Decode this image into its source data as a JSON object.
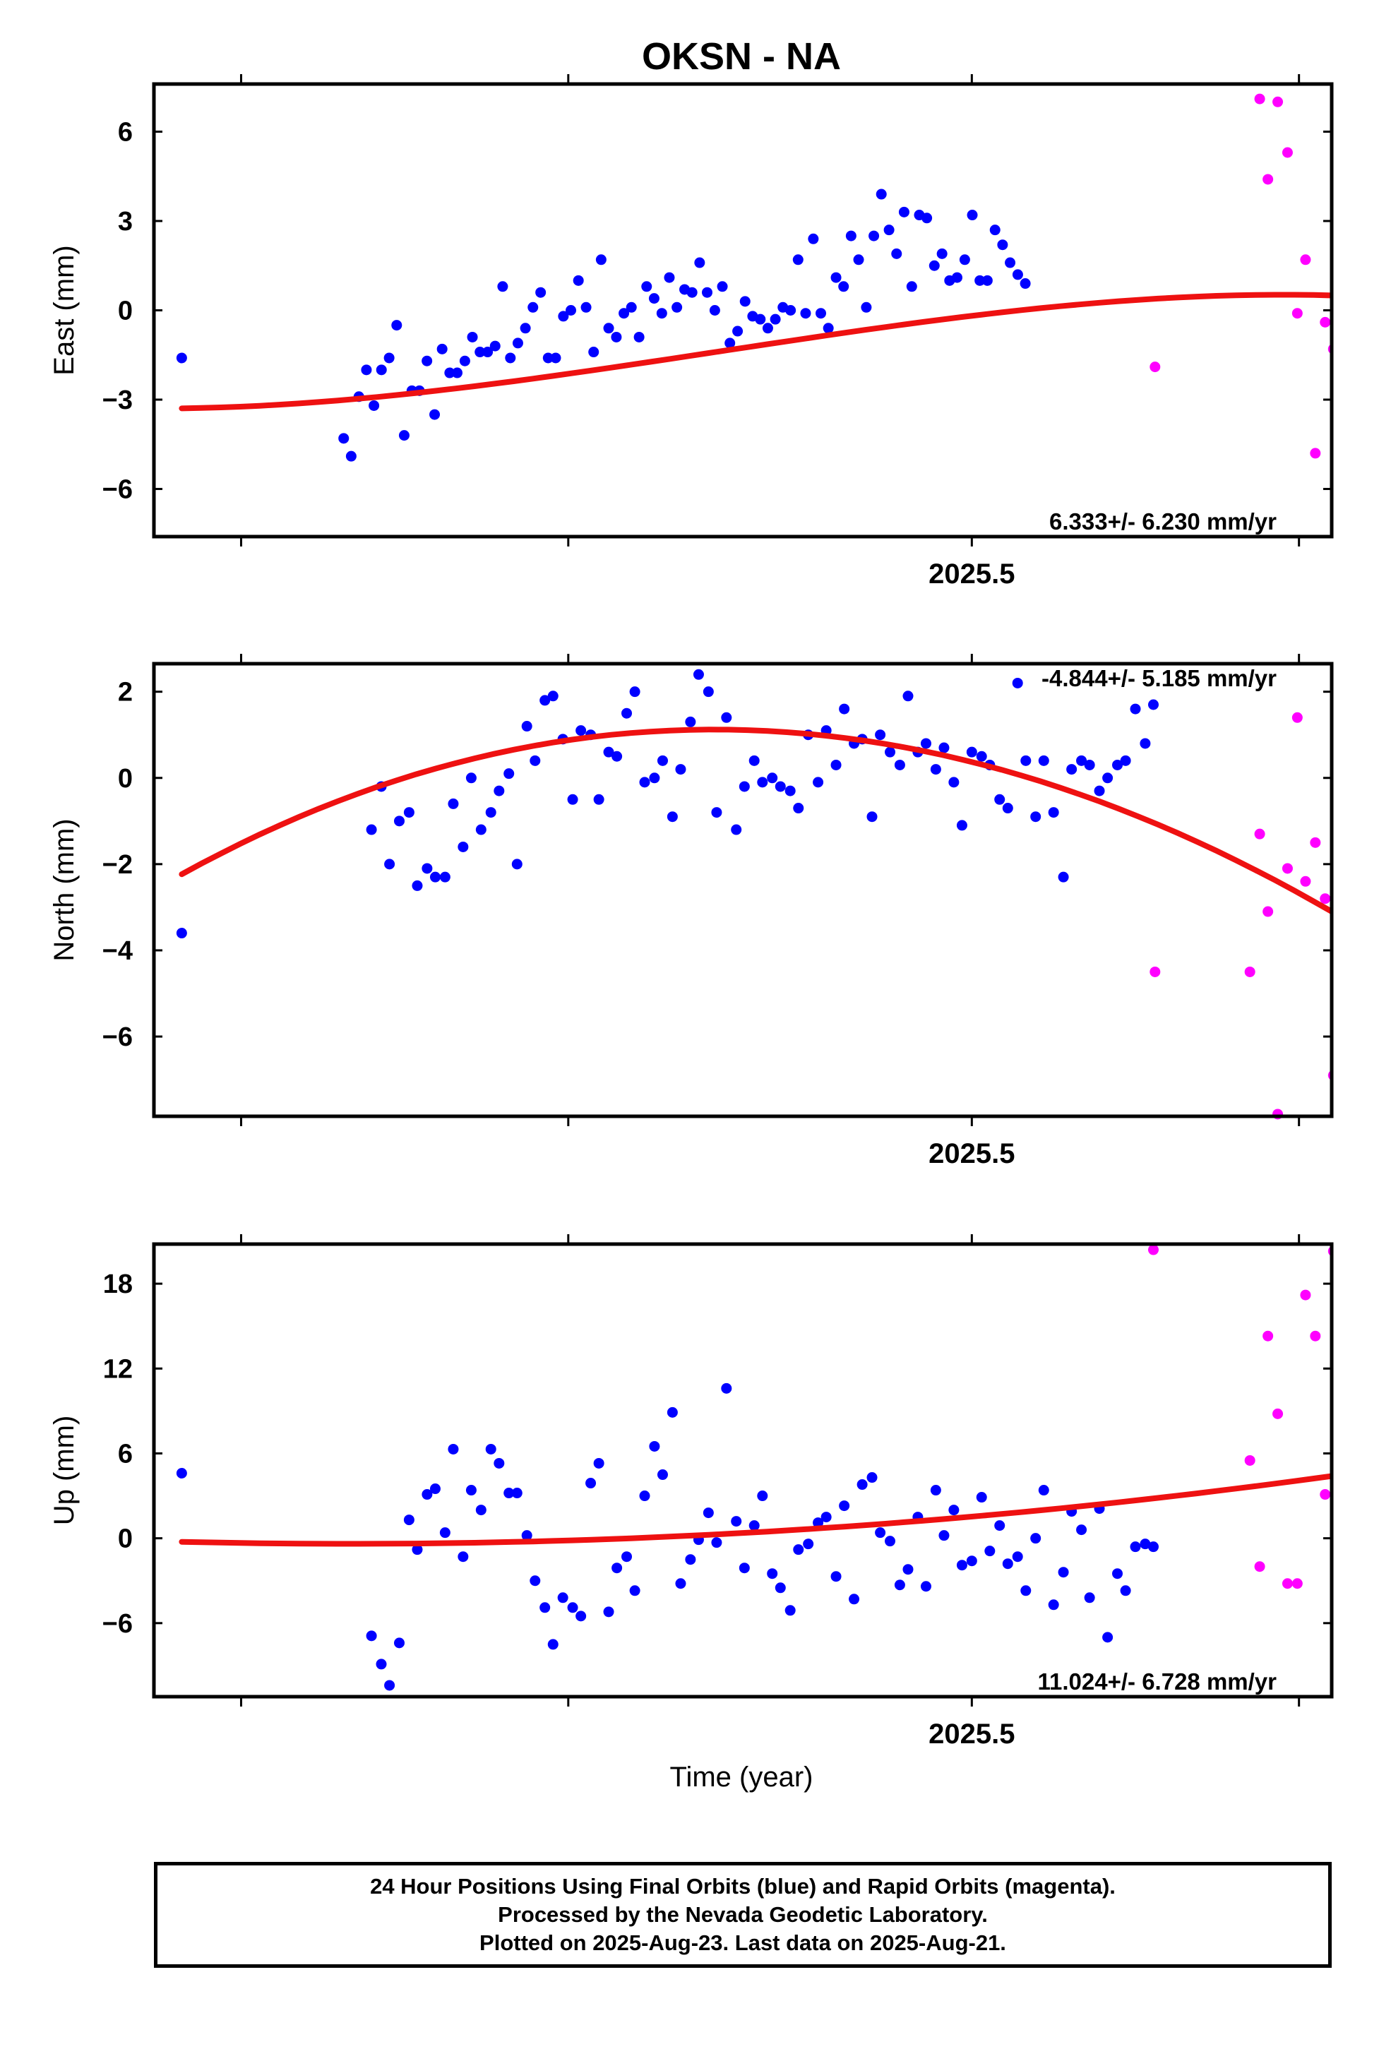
{
  "title": "OKSN - NA",
  "xlabel": "Time (year)",
  "footer": {
    "line1": "24 Hour Positions Using Final Orbits (blue) and Rapid Orbits (magenta).",
    "line2": "Processed by the Nevada Geodetic Laboratory.",
    "line3": "Plotted on 2025-Aug-23. Last data on 2025-Aug-21."
  },
  "colors": {
    "final": "#0000ff",
    "rapid": "#ff00ff",
    "fit": "#ee1111",
    "frame": "#000000"
  },
  "chart_data": [
    {
      "type": "scatter",
      "panel": "east",
      "ylabel": "East (mm)",
      "xlim": [
        2025.002,
        2025.722
      ],
      "ylim": [
        -7.6,
        7.6
      ],
      "yticks": [
        -6,
        -3,
        0,
        3,
        6
      ],
      "xticks": [
        2025.5
      ],
      "xminorticks": [
        2025.03,
        2025.23,
        2025.73
      ],
      "rate_text": "6.333+/- 6.230 mm/yr",
      "series": [
        {
          "x": [
            2025.017,
            2025.133,
            2025.139,
            2025.144,
            2025.15,
            2025.156,
            2025.161,
            2025.167,
            2025.172,
            2025.178,
            2025.183,
            2025.189,
            2025.194,
            2025.2,
            2025.206,
            2025.211,
            2025.217,
            2025.222,
            2025.228,
            2025.233,
            2025.239,
            2025.244,
            2025.25,
            2025.256,
            2025.261,
            2025.267,
            2025.272,
            2025.278,
            2025.283,
            2025.289,
            2025.294,
            2025.3,
            2025.306,
            2025.311,
            2025.317,
            2025.322,
            2025.328,
            2025.333,
            2025.339,
            2025.344,
            2025.35,
            2025.356,
            2025.361,
            2025.367,
            2025.372,
            2025.378,
            2025.383,
            2025.389,
            2025.394,
            2025.4,
            2025.406,
            2025.411,
            2025.417,
            2025.422,
            2025.428,
            2025.433,
            2025.439,
            2025.444,
            2025.45,
            2025.456,
            2025.461,
            2025.467,
            2025.472,
            2025.478,
            2025.483,
            2025.489,
            2025.494,
            2025.5,
            2025.506,
            2025.511,
            2025.517,
            2025.522,
            2025.528,
            2025.533,
            2025.539,
            2025.544,
            2025.55,
            2025.556,
            2025.561,
            2025.567,
            2025.572,
            2025.578,
            2025.583,
            2025.589,
            2025.594,
            2025.6,
            2025.606,
            2025.611,
            2025.617,
            2025.622,
            2025.628,
            2025.633,
            2025.639,
            2025.644,
            2025.65
          ],
          "y": [
            -1.6,
            -4.3,
            -4.9,
            -2.9,
            -2.0,
            -3.2,
            -2.0,
            -1.6,
            -0.5,
            -4.2,
            -2.7,
            -2.7,
            -1.7,
            -3.5,
            -1.3,
            -2.1,
            -2.1,
            -1.7,
            -0.9,
            -1.4,
            -1.4,
            -1.2,
            0.8,
            -1.6,
            -1.1,
            -0.6,
            0.1,
            0.6,
            -1.6,
            -1.6,
            -0.2,
            0.0,
            1.0,
            0.1,
            -1.4,
            1.7,
            -0.6,
            -0.9,
            -0.1,
            0.1,
            -0.9,
            0.8,
            0.4,
            -0.1,
            1.1,
            0.1,
            0.7,
            0.6,
            1.6,
            0.6,
            0.0,
            0.8,
            -1.1,
            -0.7,
            0.3,
            -0.2,
            -0.3,
            -0.6,
            -0.3,
            0.1,
            0.0,
            1.7,
            -0.1,
            2.4,
            -0.1,
            -0.6,
            1.1,
            0.8,
            2.5,
            1.7,
            0.1,
            2.5,
            3.9,
            2.7,
            1.9,
            3.3,
            0.8,
            3.2,
            3.1,
            1.5,
            1.9,
            1.0,
            1.1,
            1.7,
            3.2,
            1.0,
            1.0,
            2.7,
            1.0,
            0.5,
            0.0,
            1.0,
            0.6,
            0.9,
            0.5
          ]
        }
      ],
      "final": {
        "x": [],
        "y": []
      },
      "rapid": {
        "x": [],
        "y": []
      },
      "fit": {
        "x": [],
        "y": []
      }
    },
    {
      "type": "scatter",
      "panel": "north",
      "ylabel": "North (mm)",
      "ylim": [
        -7.85,
        2.65
      ],
      "yticks": [
        -6,
        -4,
        -2,
        0,
        2
      ],
      "rate_text": "-4.844+/- 5.185 mm/yr"
    },
    {
      "type": "scatter",
      "panel": "up",
      "ylabel": "Up (mm)",
      "ylim": [
        -11.2,
        20.8
      ],
      "yticks": [
        -6,
        0,
        6,
        12,
        18
      ],
      "rate_text": "11.024+/- 6.728 mm/yr"
    }
  ]
}
